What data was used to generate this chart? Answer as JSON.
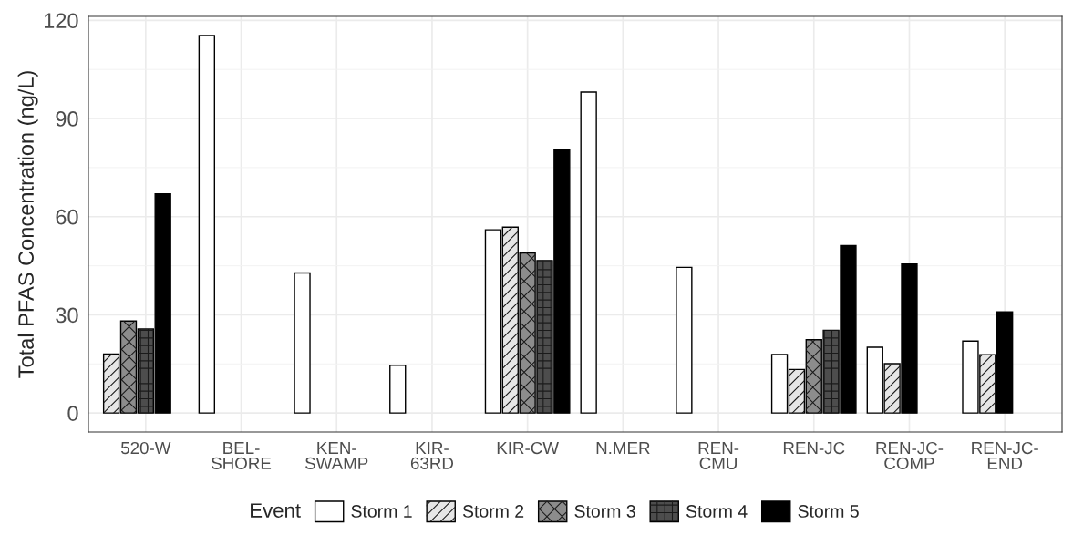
{
  "chart_data": {
    "type": "bar",
    "ylabel": "Total PFAS Concentration (ng/L)",
    "legend_title": "Event",
    "categories": [
      "520-W",
      "BEL-\nSHORE",
      "KEN-\nSWAMP",
      "KIR-\n63RD",
      "KIR-CW",
      "N.MER",
      "REN-\nCMU",
      "REN-JC",
      "REN-JC-\nCOMP",
      "REN-JC-\nEND"
    ],
    "series": [
      {
        "name": "Storm 1",
        "color": "#ffffff",
        "values": [
          null,
          115.4,
          42.8,
          14.6,
          56.0,
          98.1,
          44.5,
          17.9,
          20.1,
          22.0
        ]
      },
      {
        "name": "Storm 2",
        "color": "#e6e6e6",
        "values": [
          18.0,
          null,
          null,
          null,
          56.8,
          null,
          null,
          13.3,
          15.1,
          17.8
        ]
      },
      {
        "name": "Storm 3",
        "color": "#8c8c8c",
        "values": [
          28.1,
          null,
          null,
          null,
          48.9,
          null,
          null,
          22.4,
          null,
          null
        ]
      },
      {
        "name": "Storm 4",
        "color": "#4d4d4d",
        "values": [
          25.7,
          null,
          null,
          null,
          46.6,
          null,
          null,
          25.3,
          null,
          null
        ]
      },
      {
        "name": "Storm 5",
        "color": "#000000",
        "values": [
          67.0,
          null,
          null,
          null,
          80.6,
          null,
          null,
          51.2,
          45.5,
          30.9
        ]
      }
    ],
    "ylim": [
      -5.8,
      121.2
    ],
    "yticks": [
      0,
      {
        "value": 15,
        "label": null
      },
      30,
      {
        "value": 45,
        "label": null
      },
      60,
      {
        "value": 75,
        "label": null
      },
      90,
      {
        "value": 105,
        "label": null
      },
      120
    ],
    "grid": true,
    "legend": "bottom"
  }
}
